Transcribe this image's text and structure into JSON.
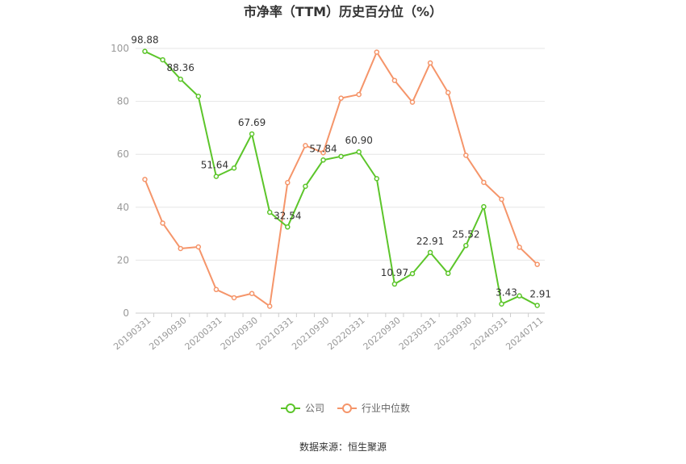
{
  "chart_data": {
    "type": "line",
    "title": "市净率（TTM）历史百分位（%）",
    "source": "数据来源：恒生聚源",
    "ylim": [
      0,
      100
    ],
    "yticks": [
      0,
      20,
      40,
      60,
      80,
      100
    ],
    "x_tick_labels": [
      "20190331",
      "20190930",
      "20200331",
      "20200930",
      "20210331",
      "20210930",
      "20220331",
      "20220930",
      "20230331",
      "20230930",
      "20240331",
      "20240711"
    ],
    "x_tick_indices": [
      0,
      2,
      4,
      6,
      8,
      10,
      12,
      14,
      16,
      18,
      20,
      22
    ],
    "grid": true,
    "legend_position": "bottom-center",
    "series": [
      {
        "name": "公司",
        "color": "#5cc52a",
        "values": [
          98.88,
          95.7,
          88.36,
          81.9,
          51.64,
          54.8,
          67.69,
          38.1,
          32.54,
          47.9,
          57.84,
          59.2,
          60.9,
          50.8,
          10.97,
          14.9,
          22.91,
          15.0,
          25.52,
          40.2,
          3.43,
          6.5,
          2.91
        ],
        "labels": {
          "0": "98.88",
          "2": "88.36",
          "4": "51.64",
          "6": "67.69",
          "8": "32.54",
          "10": "57.84",
          "12": "60.90",
          "14": "10.97",
          "16": "22.91",
          "18": "25.52",
          "20": "3.43",
          "22": "2.91"
        }
      },
      {
        "name": "行业中位数",
        "color": "#f5956a",
        "values": [
          50.5,
          34.0,
          24.4,
          25.0,
          8.9,
          5.8,
          7.4,
          2.6,
          49.3,
          63.3,
          60.6,
          81.2,
          82.6,
          98.6,
          87.9,
          79.7,
          94.5,
          83.3,
          59.6,
          49.4,
          43.0,
          24.9,
          18.4
        ],
        "labels": {}
      }
    ]
  }
}
